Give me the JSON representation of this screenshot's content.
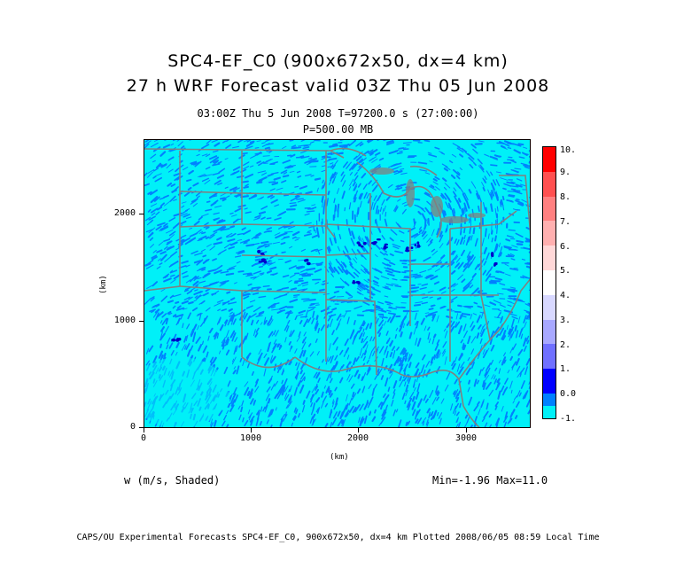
{
  "title": {
    "line1": "SPC4-EF_C0 (900x672x50, dx=4 km)",
    "line2": "27 h WRF Forecast valid 03Z Thu 05 Jun 2008"
  },
  "subtitle": {
    "time": "03:00Z Thu  5 Jun 2008     T=97200.0 s (27:00:00)",
    "level": "P=500.00 MB"
  },
  "axes": {
    "x_label": "(km)",
    "y_label": "(km)",
    "x_ticks": [
      "0",
      "1000",
      "2000",
      "3000"
    ],
    "y_ticks": [
      "0",
      "1000",
      "2000"
    ],
    "x_range": [
      0,
      3600
    ],
    "y_range": [
      0,
      2688
    ]
  },
  "colorbar": {
    "labels": [
      "10.",
      "9.",
      "8.",
      "7.",
      "6.",
      "5.",
      "4.",
      "3.",
      "2.",
      "1.",
      "0.0",
      "-1."
    ],
    "colors": [
      "#ff0000",
      "#ff5050",
      "#ff8080",
      "#ffb0b0",
      "#ffd8d8",
      "#ffffff",
      "#d8d8ff",
      "#a8a8ff",
      "#7070ff",
      "#0000ff",
      "#0080ff",
      "#00f0f8"
    ]
  },
  "variable_label": "w (m/s, Shaded)",
  "minmax": "Min=-1.96  Max=11.0",
  "footer": "CAPS/OU Experimental Forecasts  SPC4-EF_C0, 900x672x50, dx=4 km  Plotted 2008/06/05 08:59 Local Time",
  "colors": {
    "background_field": "#00f0f8",
    "streak": "#0080ff",
    "updraft": "#0000cc",
    "boundaries": "#808080"
  }
}
